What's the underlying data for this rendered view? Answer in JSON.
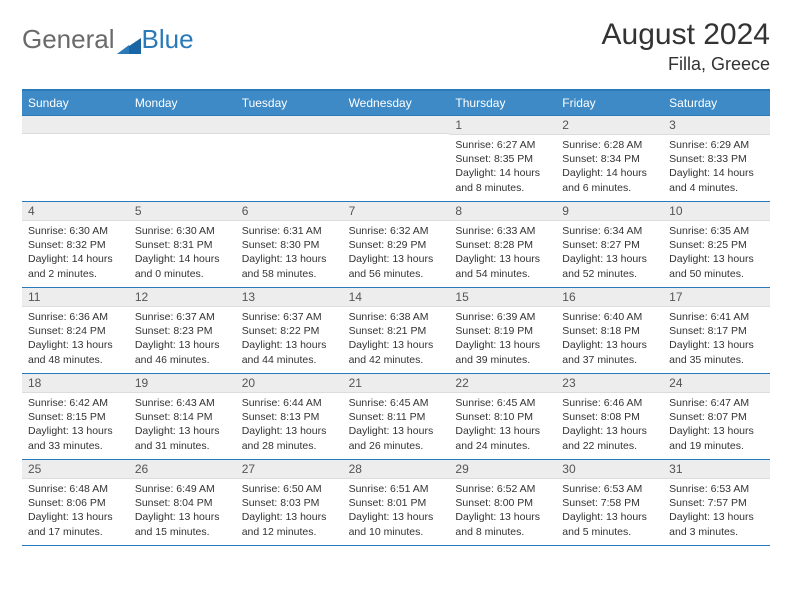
{
  "logo": {
    "text_gray": "General",
    "text_blue": "Blue"
  },
  "title": "August 2024",
  "location": "Filla, Greece",
  "colors": {
    "header_bg": "#3d8ac7",
    "border": "#2a7ab9",
    "daynum_bg": "#ededed",
    "text": "#333333",
    "logo_gray": "#6a6a6a",
    "logo_blue": "#2a7ab9",
    "logo_triangle": "#1a65a3"
  },
  "day_headers": [
    "Sunday",
    "Monday",
    "Tuesday",
    "Wednesday",
    "Thursday",
    "Friday",
    "Saturday"
  ],
  "weeks": [
    [
      {
        "day": "",
        "sunrise": "",
        "sunset": "",
        "daylight": ""
      },
      {
        "day": "",
        "sunrise": "",
        "sunset": "",
        "daylight": ""
      },
      {
        "day": "",
        "sunrise": "",
        "sunset": "",
        "daylight": ""
      },
      {
        "day": "",
        "sunrise": "",
        "sunset": "",
        "daylight": ""
      },
      {
        "day": "1",
        "sunrise": "Sunrise: 6:27 AM",
        "sunset": "Sunset: 8:35 PM",
        "daylight": "Daylight: 14 hours and 8 minutes."
      },
      {
        "day": "2",
        "sunrise": "Sunrise: 6:28 AM",
        "sunset": "Sunset: 8:34 PM",
        "daylight": "Daylight: 14 hours and 6 minutes."
      },
      {
        "day": "3",
        "sunrise": "Sunrise: 6:29 AM",
        "sunset": "Sunset: 8:33 PM",
        "daylight": "Daylight: 14 hours and 4 minutes."
      }
    ],
    [
      {
        "day": "4",
        "sunrise": "Sunrise: 6:30 AM",
        "sunset": "Sunset: 8:32 PM",
        "daylight": "Daylight: 14 hours and 2 minutes."
      },
      {
        "day": "5",
        "sunrise": "Sunrise: 6:30 AM",
        "sunset": "Sunset: 8:31 PM",
        "daylight": "Daylight: 14 hours and 0 minutes."
      },
      {
        "day": "6",
        "sunrise": "Sunrise: 6:31 AM",
        "sunset": "Sunset: 8:30 PM",
        "daylight": "Daylight: 13 hours and 58 minutes."
      },
      {
        "day": "7",
        "sunrise": "Sunrise: 6:32 AM",
        "sunset": "Sunset: 8:29 PM",
        "daylight": "Daylight: 13 hours and 56 minutes."
      },
      {
        "day": "8",
        "sunrise": "Sunrise: 6:33 AM",
        "sunset": "Sunset: 8:28 PM",
        "daylight": "Daylight: 13 hours and 54 minutes."
      },
      {
        "day": "9",
        "sunrise": "Sunrise: 6:34 AM",
        "sunset": "Sunset: 8:27 PM",
        "daylight": "Daylight: 13 hours and 52 minutes."
      },
      {
        "day": "10",
        "sunrise": "Sunrise: 6:35 AM",
        "sunset": "Sunset: 8:25 PM",
        "daylight": "Daylight: 13 hours and 50 minutes."
      }
    ],
    [
      {
        "day": "11",
        "sunrise": "Sunrise: 6:36 AM",
        "sunset": "Sunset: 8:24 PM",
        "daylight": "Daylight: 13 hours and 48 minutes."
      },
      {
        "day": "12",
        "sunrise": "Sunrise: 6:37 AM",
        "sunset": "Sunset: 8:23 PM",
        "daylight": "Daylight: 13 hours and 46 minutes."
      },
      {
        "day": "13",
        "sunrise": "Sunrise: 6:37 AM",
        "sunset": "Sunset: 8:22 PM",
        "daylight": "Daylight: 13 hours and 44 minutes."
      },
      {
        "day": "14",
        "sunrise": "Sunrise: 6:38 AM",
        "sunset": "Sunset: 8:21 PM",
        "daylight": "Daylight: 13 hours and 42 minutes."
      },
      {
        "day": "15",
        "sunrise": "Sunrise: 6:39 AM",
        "sunset": "Sunset: 8:19 PM",
        "daylight": "Daylight: 13 hours and 39 minutes."
      },
      {
        "day": "16",
        "sunrise": "Sunrise: 6:40 AM",
        "sunset": "Sunset: 8:18 PM",
        "daylight": "Daylight: 13 hours and 37 minutes."
      },
      {
        "day": "17",
        "sunrise": "Sunrise: 6:41 AM",
        "sunset": "Sunset: 8:17 PM",
        "daylight": "Daylight: 13 hours and 35 minutes."
      }
    ],
    [
      {
        "day": "18",
        "sunrise": "Sunrise: 6:42 AM",
        "sunset": "Sunset: 8:15 PM",
        "daylight": "Daylight: 13 hours and 33 minutes."
      },
      {
        "day": "19",
        "sunrise": "Sunrise: 6:43 AM",
        "sunset": "Sunset: 8:14 PM",
        "daylight": "Daylight: 13 hours and 31 minutes."
      },
      {
        "day": "20",
        "sunrise": "Sunrise: 6:44 AM",
        "sunset": "Sunset: 8:13 PM",
        "daylight": "Daylight: 13 hours and 28 minutes."
      },
      {
        "day": "21",
        "sunrise": "Sunrise: 6:45 AM",
        "sunset": "Sunset: 8:11 PM",
        "daylight": "Daylight: 13 hours and 26 minutes."
      },
      {
        "day": "22",
        "sunrise": "Sunrise: 6:45 AM",
        "sunset": "Sunset: 8:10 PM",
        "daylight": "Daylight: 13 hours and 24 minutes."
      },
      {
        "day": "23",
        "sunrise": "Sunrise: 6:46 AM",
        "sunset": "Sunset: 8:08 PM",
        "daylight": "Daylight: 13 hours and 22 minutes."
      },
      {
        "day": "24",
        "sunrise": "Sunrise: 6:47 AM",
        "sunset": "Sunset: 8:07 PM",
        "daylight": "Daylight: 13 hours and 19 minutes."
      }
    ],
    [
      {
        "day": "25",
        "sunrise": "Sunrise: 6:48 AM",
        "sunset": "Sunset: 8:06 PM",
        "daylight": "Daylight: 13 hours and 17 minutes."
      },
      {
        "day": "26",
        "sunrise": "Sunrise: 6:49 AM",
        "sunset": "Sunset: 8:04 PM",
        "daylight": "Daylight: 13 hours and 15 minutes."
      },
      {
        "day": "27",
        "sunrise": "Sunrise: 6:50 AM",
        "sunset": "Sunset: 8:03 PM",
        "daylight": "Daylight: 13 hours and 12 minutes."
      },
      {
        "day": "28",
        "sunrise": "Sunrise: 6:51 AM",
        "sunset": "Sunset: 8:01 PM",
        "daylight": "Daylight: 13 hours and 10 minutes."
      },
      {
        "day": "29",
        "sunrise": "Sunrise: 6:52 AM",
        "sunset": "Sunset: 8:00 PM",
        "daylight": "Daylight: 13 hours and 8 minutes."
      },
      {
        "day": "30",
        "sunrise": "Sunrise: 6:53 AM",
        "sunset": "Sunset: 7:58 PM",
        "daylight": "Daylight: 13 hours and 5 minutes."
      },
      {
        "day": "31",
        "sunrise": "Sunrise: 6:53 AM",
        "sunset": "Sunset: 7:57 PM",
        "daylight": "Daylight: 13 hours and 3 minutes."
      }
    ]
  ]
}
